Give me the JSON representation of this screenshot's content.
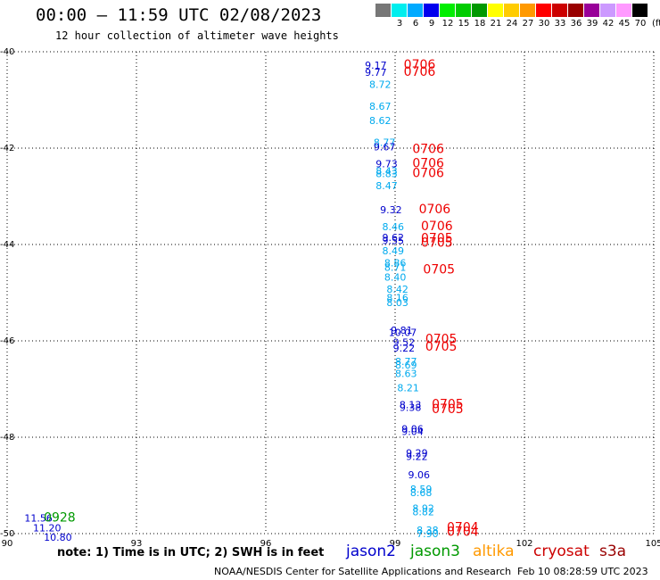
{
  "header": {
    "title": "00:00 – 11:59 UTC 02/08/2023",
    "subtitle": "12 hour collection of altimeter wave heights"
  },
  "legend": {
    "colors": [
      "#777777",
      "#00eeee",
      "#00aaff",
      "#0000ee",
      "#00ee00",
      "#00cc00",
      "#009900",
      "#ffff00",
      "#ffcc00",
      "#ff9900",
      "#ff0000",
      "#cc0000",
      "#990000",
      "#990099",
      "#cc99ff",
      "#ff99ff",
      "#000000"
    ],
    "labels": [
      "",
      "3",
      "6",
      "9",
      "12",
      "15",
      "18",
      "21",
      "24",
      "27",
      "30",
      "33",
      "36",
      "39",
      "42",
      "45",
      "70"
    ],
    "unit": "(ft)"
  },
  "satellites": [
    {
      "name": "jason2",
      "color": "#0000cc"
    },
    {
      "name": "jason3",
      "color": "#009900"
    },
    {
      "name": "altika",
      "color": "#ff9900"
    },
    {
      "name": "cryosat",
      "color": "#cc0000"
    },
    {
      "name": "s3a",
      "color": "#990000"
    }
  ],
  "note": "note: 1) Time is in UTC; 2) SWH is in feet",
  "footer": "NOAA/NESDIS Center for Satellite Applications and Research",
  "timestamp": "Feb 10 08:28:59 UTC 2023",
  "chart_data": {
    "type": "scatter",
    "title": "00:00 – 11:59 UTC 02/08/2023",
    "xlim": [
      90,
      105
    ],
    "ylim": [
      -50,
      -40
    ],
    "x_ticks": [
      90,
      93,
      96,
      99,
      102,
      105
    ],
    "y_ticks": [
      -40,
      -42,
      -44,
      -46,
      -48,
      -50
    ],
    "grid": true,
    "points": [
      {
        "x": 98.3,
        "y": -40.35,
        "label": "9.17",
        "color": "#0000cc"
      },
      {
        "x": 98.3,
        "y": -40.5,
        "label": "9.77",
        "color": "#0000cc"
      },
      {
        "x": 98.4,
        "y": -40.75,
        "label": "8.72",
        "color": "#00aaee"
      },
      {
        "x": 98.4,
        "y": -41.2,
        "label": "8.67",
        "color": "#00aaee"
      },
      {
        "x": 98.4,
        "y": -41.5,
        "label": "8.62",
        "color": "#00aaee"
      },
      {
        "x": 98.5,
        "y": -41.95,
        "label": "8.77",
        "color": "#00aaee"
      },
      {
        "x": 98.5,
        "y": -42.05,
        "label": "9.67",
        "color": "#0000cc"
      },
      {
        "x": 98.55,
        "y": -42.4,
        "label": "9.73",
        "color": "#0000cc"
      },
      {
        "x": 98.55,
        "y": -42.55,
        "label": "8.43",
        "color": "#00aaee"
      },
      {
        "x": 98.55,
        "y": -42.6,
        "label": "8.83",
        "color": "#00aaee"
      },
      {
        "x": 98.55,
        "y": -42.85,
        "label": "8.47",
        "color": "#00aaee"
      },
      {
        "x": 98.65,
        "y": -43.35,
        "label": "9.32",
        "color": "#0000cc"
      },
      {
        "x": 98.7,
        "y": -43.7,
        "label": "8.46",
        "color": "#00aaee"
      },
      {
        "x": 98.7,
        "y": -43.93,
        "label": "9.62",
        "color": "#0000cc"
      },
      {
        "x": 98.7,
        "y": -43.99,
        "label": "9.55",
        "color": "#0000cc"
      },
      {
        "x": 98.7,
        "y": -44.2,
        "label": "8.49",
        "color": "#00aaee"
      },
      {
        "x": 98.75,
        "y": -44.45,
        "label": "8.86",
        "color": "#00aaee"
      },
      {
        "x": 98.75,
        "y": -44.55,
        "label": "8.71",
        "color": "#00aaee"
      },
      {
        "x": 98.75,
        "y": -44.75,
        "label": "8.40",
        "color": "#00aaee"
      },
      {
        "x": 98.8,
        "y": -45.0,
        "label": "8.42",
        "color": "#00aaee"
      },
      {
        "x": 98.8,
        "y": -45.18,
        "label": "8.16",
        "color": "#00aaee"
      },
      {
        "x": 98.8,
        "y": -45.28,
        "label": "8.03",
        "color": "#00aaee"
      },
      {
        "x": 98.9,
        "y": -45.85,
        "label": "9.81",
        "color": "#0000cc"
      },
      {
        "x": 98.85,
        "y": -45.9,
        "label": "10.07",
        "color": "#0000cc"
      },
      {
        "x": 98.95,
        "y": -46.1,
        "label": "9.52",
        "color": "#0000cc"
      },
      {
        "x": 98.95,
        "y": -46.22,
        "label": "9.22",
        "color": "#0000cc"
      },
      {
        "x": 99.0,
        "y": -46.5,
        "label": "8.77",
        "color": "#00aaee"
      },
      {
        "x": 99.0,
        "y": -46.57,
        "label": "8.69",
        "color": "#00aaee"
      },
      {
        "x": 99.0,
        "y": -46.75,
        "label": "8.63",
        "color": "#00aaee"
      },
      {
        "x": 99.05,
        "y": -47.05,
        "label": "8.21",
        "color": "#00aaee"
      },
      {
        "x": 99.1,
        "y": -47.4,
        "label": "8.13",
        "color": "#0000cc"
      },
      {
        "x": 99.1,
        "y": -47.45,
        "label": "9.38",
        "color": "#0000cc"
      },
      {
        "x": 99.15,
        "y": -47.9,
        "label": "9.06",
        "color": "#0000cc"
      },
      {
        "x": 99.15,
        "y": -47.95,
        "label": "9.04",
        "color": "#0000cc"
      },
      {
        "x": 99.25,
        "y": -48.4,
        "label": "9.29",
        "color": "#0000cc"
      },
      {
        "x": 99.25,
        "y": -48.47,
        "label": "9.22",
        "color": "#0000cc"
      },
      {
        "x": 99.3,
        "y": -48.85,
        "label": "9.06",
        "color": "#0000cc"
      },
      {
        "x": 99.35,
        "y": -49.15,
        "label": "8.59",
        "color": "#00aaee"
      },
      {
        "x": 99.35,
        "y": -49.22,
        "label": "8.68",
        "color": "#00aaee"
      },
      {
        "x": 99.4,
        "y": -49.55,
        "label": "8.92",
        "color": "#00aaee"
      },
      {
        "x": 99.4,
        "y": -49.62,
        "label": "8.82",
        "color": "#00aaee"
      },
      {
        "x": 99.5,
        "y": -50.0,
        "label": "8.38",
        "color": "#00aaee"
      },
      {
        "x": 99.5,
        "y": -50.07,
        "label": "7.90",
        "color": "#00aaee"
      },
      {
        "x": 90.4,
        "y": -49.75,
        "label": "11.56",
        "color": "#0000cc"
      },
      {
        "x": 90.6,
        "y": -49.95,
        "label": "11.20",
        "color": "#0000cc"
      },
      {
        "x": 90.85,
        "y": -50.15,
        "label": "10.80",
        "color": "#0000cc"
      }
    ],
    "time_labels": [
      {
        "x": 99.2,
        "y": -40.35,
        "label": "0706",
        "color": "#ee0000"
      },
      {
        "x": 99.2,
        "y": -40.5,
        "label": "0706",
        "color": "#ee0000"
      },
      {
        "x": 99.4,
        "y": -42.1,
        "label": "0706",
        "color": "#ee0000"
      },
      {
        "x": 99.4,
        "y": -42.4,
        "label": "0706",
        "color": "#ee0000"
      },
      {
        "x": 99.4,
        "y": -42.6,
        "label": "0706",
        "color": "#ee0000"
      },
      {
        "x": 99.55,
        "y": -43.35,
        "label": "0706",
        "color": "#ee0000"
      },
      {
        "x": 99.6,
        "y": -43.7,
        "label": "0706",
        "color": "#ee0000"
      },
      {
        "x": 99.6,
        "y": -43.95,
        "label": "0705",
        "color": "#ee0000"
      },
      {
        "x": 99.6,
        "y": -44.05,
        "label": "0705",
        "color": "#ee0000"
      },
      {
        "x": 99.65,
        "y": -44.6,
        "label": "0705",
        "color": "#ee0000"
      },
      {
        "x": 99.7,
        "y": -46.05,
        "label": "0705",
        "color": "#ee0000"
      },
      {
        "x": 99.7,
        "y": -46.2,
        "label": "0705",
        "color": "#ee0000"
      },
      {
        "x": 99.85,
        "y": -47.4,
        "label": "0705",
        "color": "#ee0000"
      },
      {
        "x": 99.85,
        "y": -47.5,
        "label": "0705",
        "color": "#ee0000"
      },
      {
        "x": 100.2,
        "y": -49.95,
        "label": "0704",
        "color": "#ee0000"
      },
      {
        "x": 100.2,
        "y": -50.05,
        "label": "0704",
        "color": "#ee0000"
      },
      {
        "x": 90.85,
        "y": -49.75,
        "label": "0928",
        "color": "#009900"
      }
    ]
  }
}
